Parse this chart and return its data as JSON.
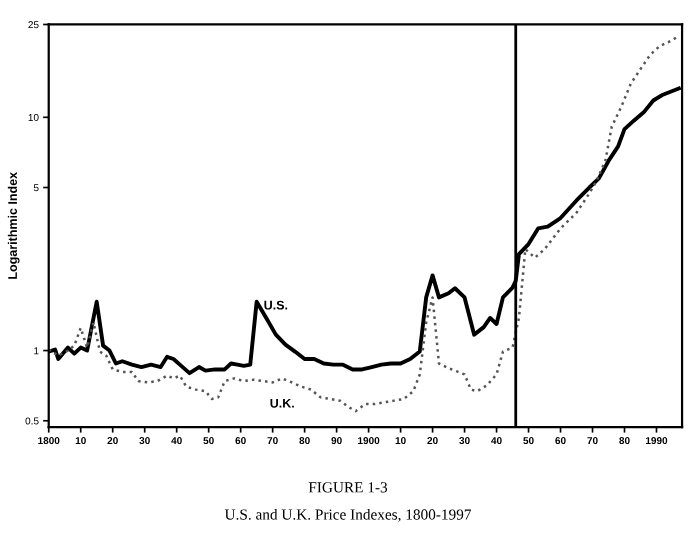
{
  "chart_data": {
    "type": "line",
    "title": "FIGURE 1-3",
    "subtitle": "U.S. and U.K. Price Indexes, 1800-1997",
    "ylabel": "Logarithmic Index",
    "log": "y",
    "xlim": [
      1800,
      1998
    ],
    "ylim": [
      0.47,
      25
    ],
    "xticks": [
      {
        "value": 1800,
        "label": "1800"
      },
      {
        "value": 1810,
        "label": "10"
      },
      {
        "value": 1820,
        "label": "20"
      },
      {
        "value": 1830,
        "label": "30"
      },
      {
        "value": 1840,
        "label": "40"
      },
      {
        "value": 1850,
        "label": "50"
      },
      {
        "value": 1860,
        "label": "60"
      },
      {
        "value": 1870,
        "label": "70"
      },
      {
        "value": 1880,
        "label": "80"
      },
      {
        "value": 1890,
        "label": "90"
      },
      {
        "value": 1900,
        "label": "1900"
      },
      {
        "value": 1910,
        "label": "10"
      },
      {
        "value": 1920,
        "label": "20"
      },
      {
        "value": 1930,
        "label": "30"
      },
      {
        "value": 1940,
        "label": "40"
      },
      {
        "value": 1950,
        "label": "50"
      },
      {
        "value": 1960,
        "label": "60"
      },
      {
        "value": 1970,
        "label": "70"
      },
      {
        "value": 1980,
        "label": "80"
      },
      {
        "value": 1990,
        "label": "1990"
      }
    ],
    "yticks": [
      0.5,
      1,
      5,
      10,
      25
    ],
    "grid": false,
    "legend": false,
    "ref_lines": [
      {
        "axis": "x",
        "value": 1946,
        "color": "#000000",
        "line_style": "solid"
      }
    ],
    "series": [
      {
        "name": "U.S.",
        "color": "#000000",
        "line_style": "solid",
        "x": [
          1800,
          1802,
          1803,
          1806,
          1808,
          1810,
          1812,
          1815,
          1817,
          1819,
          1821,
          1823,
          1826,
          1829,
          1832,
          1835,
          1837,
          1839,
          1841,
          1844,
          1847,
          1849,
          1852,
          1855,
          1857,
          1859,
          1861,
          1863,
          1865,
          1868,
          1871,
          1874,
          1877,
          1880,
          1883,
          1886,
          1889,
          1892,
          1895,
          1898,
          1901,
          1904,
          1907,
          1910,
          1913,
          1916,
          1918,
          1920,
          1922,
          1925,
          1927,
          1930,
          1933,
          1936,
          1938,
          1940,
          1942,
          1945,
          1946,
          1947,
          1950,
          1953,
          1956,
          1960,
          1965,
          1969,
          1972,
          1975,
          1978,
          1980,
          1983,
          1986,
          1989,
          1992,
          1997
        ],
        "values": [
          0.99,
          1.01,
          0.92,
          1.03,
          0.97,
          1.03,
          1.0,
          1.62,
          1.05,
          1.0,
          0.88,
          0.9,
          0.87,
          0.85,
          0.87,
          0.85,
          0.94,
          0.92,
          0.87,
          0.8,
          0.85,
          0.82,
          0.83,
          0.83,
          0.88,
          0.87,
          0.86,
          0.87,
          1.62,
          1.38,
          1.17,
          1.06,
          0.99,
          0.92,
          0.92,
          0.88,
          0.87,
          0.87,
          0.83,
          0.83,
          0.85,
          0.87,
          0.88,
          0.88,
          0.92,
          0.99,
          1.69,
          2.1,
          1.69,
          1.76,
          1.85,
          1.69,
          1.17,
          1.26,
          1.38,
          1.3,
          1.69,
          1.86,
          1.99,
          2.59,
          2.86,
          3.34,
          3.4,
          3.7,
          4.4,
          5.0,
          5.47,
          6.5,
          7.5,
          8.9,
          9.7,
          10.5,
          11.8,
          12.5,
          13.3
        ]
      },
      {
        "name": "U.K.",
        "color": "#555555",
        "line_style": "dotted",
        "x": [
          1800,
          1803,
          1806,
          1808,
          1810,
          1812,
          1814,
          1816,
          1818,
          1820,
          1823,
          1826,
          1828,
          1831,
          1834,
          1837,
          1839,
          1841,
          1843,
          1846,
          1849,
          1851,
          1853,
          1855,
          1858,
          1861,
          1864,
          1867,
          1870,
          1873,
          1876,
          1879,
          1882,
          1885,
          1888,
          1891,
          1894,
          1896,
          1899,
          1902,
          1905,
          1908,
          1911,
          1914,
          1916,
          1918,
          1920,
          1922,
          1925,
          1928,
          1930,
          1932,
          1934,
          1937,
          1940,
          1942,
          1945,
          1947,
          1949,
          1952,
          1955,
          1960,
          1965,
          1969,
          1971,
          1974,
          1976,
          1979,
          1982,
          1985,
          1988,
          1991,
          1994,
          1997
        ],
        "values": [
          1.01,
          0.95,
          1.0,
          1.05,
          1.25,
          1.03,
          1.32,
          0.99,
          0.95,
          0.83,
          0.81,
          0.81,
          0.74,
          0.73,
          0.74,
          0.78,
          0.76,
          0.78,
          0.7,
          0.68,
          0.67,
          0.62,
          0.63,
          0.74,
          0.76,
          0.74,
          0.75,
          0.74,
          0.73,
          0.76,
          0.73,
          0.7,
          0.68,
          0.63,
          0.62,
          0.61,
          0.57,
          0.55,
          0.59,
          0.59,
          0.6,
          0.61,
          0.62,
          0.67,
          0.79,
          1.32,
          1.69,
          0.88,
          0.84,
          0.81,
          0.79,
          0.68,
          0.67,
          0.71,
          0.79,
          0.99,
          1.03,
          1.38,
          2.72,
          2.5,
          2.72,
          3.34,
          3.9,
          4.72,
          5.25,
          6.5,
          9.1,
          11.1,
          13.97,
          16.1,
          18.5,
          20.2,
          21.1,
          22.3
        ]
      }
    ]
  }
}
